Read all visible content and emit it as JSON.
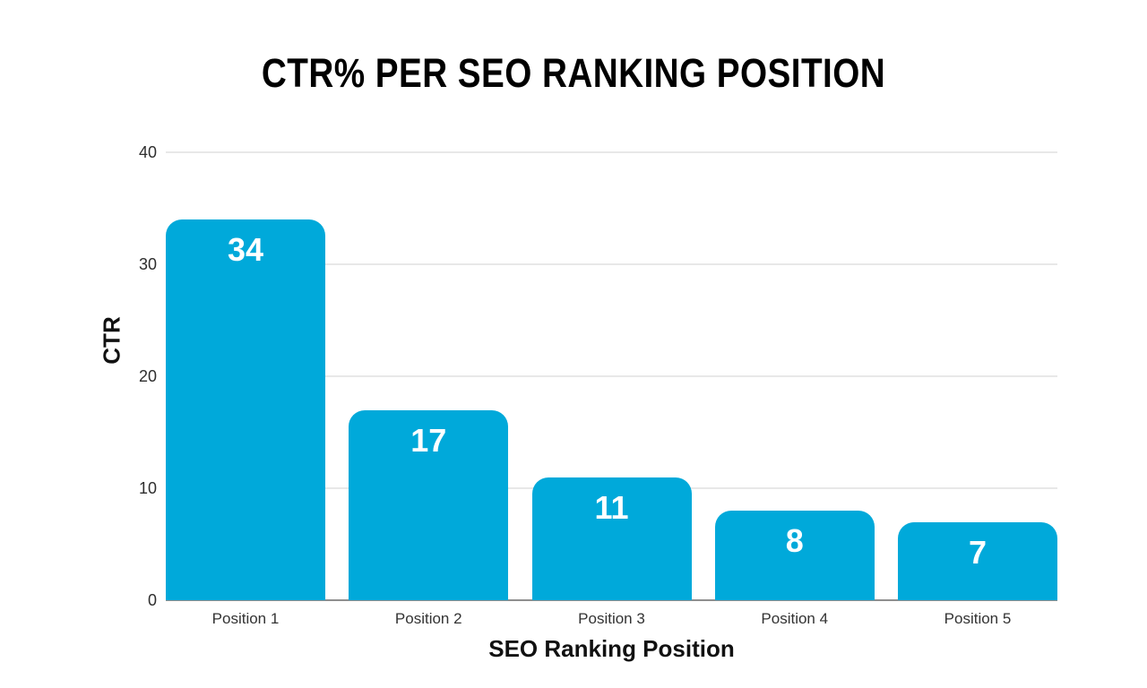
{
  "chart_data": {
    "type": "bar",
    "title": "CTR% PER SEO RANKING POSITION",
    "xlabel": "SEO Ranking Position",
    "ylabel": "CTR",
    "categories": [
      "Position 1",
      "Position 2",
      "Position 3",
      "Position 4",
      "Position 5"
    ],
    "values": [
      34,
      17,
      11,
      8,
      7
    ],
    "ylim": [
      0,
      40
    ],
    "ytick_labels_top_to_bottom": [
      "40",
      "30",
      "20",
      "10",
      "0"
    ],
    "grid": "horizontal",
    "legend": "none",
    "bar_color": "#00a9da",
    "value_label_color": "#ffffff",
    "gridline_color": "#e8e8e8",
    "axis_line_color": "#8f8f8f"
  }
}
